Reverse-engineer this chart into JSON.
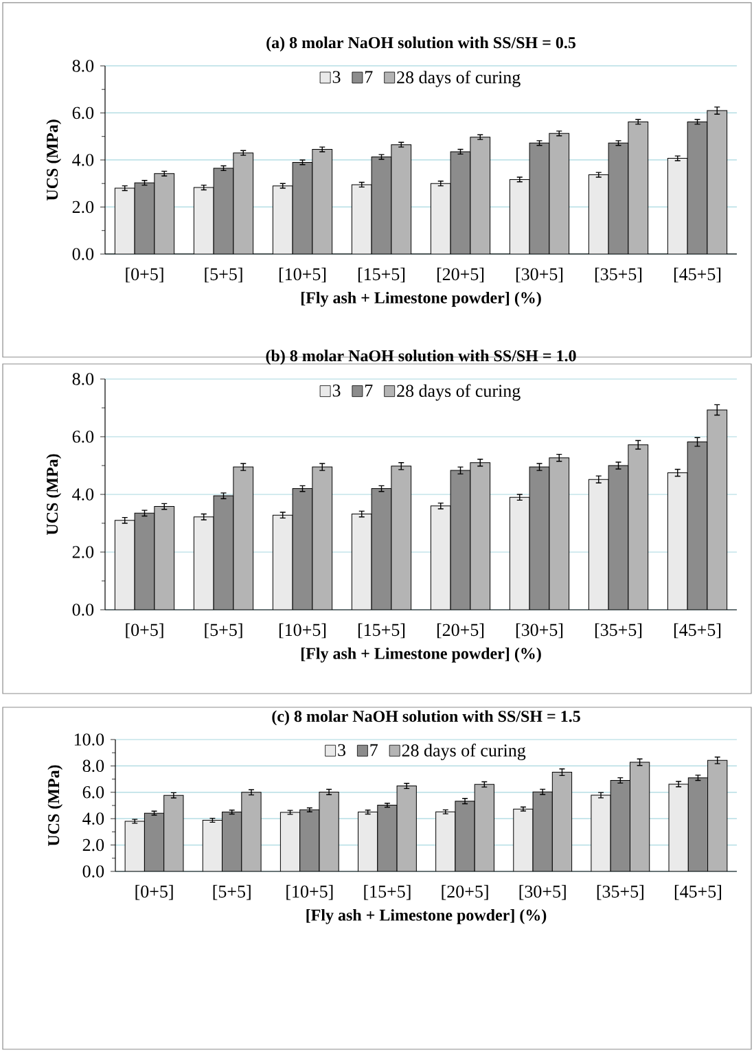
{
  "chart_data": [
    {
      "type": "bar",
      "title": "(a) 8 molar NaOH solution with SS/SH = 0.5",
      "xlabel": "[Fly ash + Limestone powder] (%)",
      "ylabel": "UCS (MPa)",
      "categories": [
        "[0+5]",
        "[5+5]",
        "[10+5]",
        "[15+5]",
        "[20+5]",
        "[30+5]",
        "[35+5]",
        "[45+5]"
      ],
      "series": [
        {
          "name": "3",
          "color": "#eaeaea",
          "values": [
            2.8,
            2.83,
            2.9,
            2.95,
            3.0,
            3.17,
            3.37,
            4.07
          ],
          "errors": [
            0.1,
            0.1,
            0.1,
            0.1,
            0.1,
            0.1,
            0.1,
            0.1
          ]
        },
        {
          "name": "7",
          "color": "#8c8c8c",
          "values": [
            3.03,
            3.65,
            3.9,
            4.13,
            4.35,
            4.72,
            4.72,
            5.62
          ],
          "errors": [
            0.1,
            0.1,
            0.1,
            0.1,
            0.1,
            0.1,
            0.1,
            0.1
          ]
        },
        {
          "name": "28 days of curing",
          "color": "#b4b4b4",
          "values": [
            3.42,
            4.3,
            4.45,
            4.65,
            4.97,
            5.13,
            5.62,
            6.1
          ],
          "errors": [
            0.1,
            0.1,
            0.1,
            0.1,
            0.1,
            0.1,
            0.1,
            0.15
          ]
        }
      ],
      "ylim": [
        0,
        8
      ],
      "yticks": [
        {
          "value": 0,
          "label": "0.0"
        },
        {
          "value": 2,
          "label": "2.0"
        },
        {
          "value": 4,
          "label": "4.0"
        },
        {
          "value": 6,
          "label": "6.0"
        },
        {
          "value": 8,
          "label": "8.0"
        }
      ],
      "grid": "y",
      "legend": "top"
    },
    {
      "type": "bar",
      "title": "(b) 8 molar NaOH solution with SS/SH = 1.0",
      "xlabel": "[Fly ash + Limestone powder] (%)",
      "ylabel": "UCS (MPa)",
      "categories": [
        "[0+5]",
        "[5+5]",
        "[10+5]",
        "[15+5]",
        "[20+5]",
        "[30+5]",
        "[35+5]",
        "[45+5]"
      ],
      "series": [
        {
          "name": "3",
          "color": "#eaeaea",
          "values": [
            3.1,
            3.22,
            3.28,
            3.32,
            3.6,
            3.9,
            4.52,
            4.75
          ],
          "errors": [
            0.1,
            0.1,
            0.1,
            0.1,
            0.1,
            0.1,
            0.12,
            0.12
          ]
        },
        {
          "name": "7",
          "color": "#8c8c8c",
          "values": [
            3.35,
            3.95,
            4.2,
            4.2,
            4.83,
            4.95,
            5.0,
            5.82
          ],
          "errors": [
            0.1,
            0.1,
            0.1,
            0.1,
            0.12,
            0.12,
            0.12,
            0.15
          ]
        },
        {
          "name": "28 days of curing",
          "color": "#b4b4b4",
          "values": [
            3.58,
            4.95,
            4.95,
            4.98,
            5.1,
            5.27,
            5.72,
            6.93
          ],
          "errors": [
            0.1,
            0.12,
            0.12,
            0.12,
            0.12,
            0.12,
            0.15,
            0.18
          ]
        }
      ],
      "ylim": [
        0,
        8
      ],
      "yticks": [
        {
          "value": 0,
          "label": "0.0"
        },
        {
          "value": 2,
          "label": "2.0"
        },
        {
          "value": 4,
          "label": "4.0"
        },
        {
          "value": 6,
          "label": "6.0"
        },
        {
          "value": 8,
          "label": "8.0"
        }
      ],
      "grid": "y",
      "legend": "top"
    },
    {
      "type": "bar",
      "title": "(c) 8 molar NaOH solution with SS/SH = 1.5",
      "xlabel": "[Fly ash + Limestone powder] (%)",
      "ylabel": "UCS (MPa)",
      "categories": [
        "[0+5]",
        "[5+5]",
        "[10+5]",
        "[15+5]",
        "[20+5]",
        "[30+5]",
        "[35+5]",
        "[45+5]"
      ],
      "series": [
        {
          "name": "3",
          "color": "#eaeaea",
          "values": [
            3.8,
            3.88,
            4.48,
            4.5,
            4.52,
            4.73,
            5.78,
            6.62
          ],
          "errors": [
            0.15,
            0.15,
            0.15,
            0.15,
            0.15,
            0.15,
            0.2,
            0.2
          ]
        },
        {
          "name": "7",
          "color": "#8c8c8c",
          "values": [
            4.42,
            4.5,
            4.67,
            5.02,
            5.33,
            6.03,
            6.9,
            7.1
          ],
          "errors": [
            0.15,
            0.15,
            0.15,
            0.15,
            0.2,
            0.2,
            0.2,
            0.2
          ]
        },
        {
          "name": "28 days of curing",
          "color": "#b4b4b4",
          "values": [
            5.77,
            6.0,
            6.02,
            6.48,
            6.6,
            7.52,
            8.28,
            8.42
          ],
          "errors": [
            0.2,
            0.2,
            0.2,
            0.2,
            0.2,
            0.25,
            0.25,
            0.25
          ]
        }
      ],
      "ylim": [
        0,
        10
      ],
      "yticks": [
        {
          "value": 0,
          "label": "0.0"
        },
        {
          "value": 2,
          "label": "2.0"
        },
        {
          "value": 4,
          "label": "4.0"
        },
        {
          "value": 6,
          "label": "6.0"
        },
        {
          "value": 8,
          "label": "8.0"
        },
        {
          "value": 10,
          "label": "10.0"
        }
      ],
      "grid": "y",
      "legend": "top"
    }
  ]
}
